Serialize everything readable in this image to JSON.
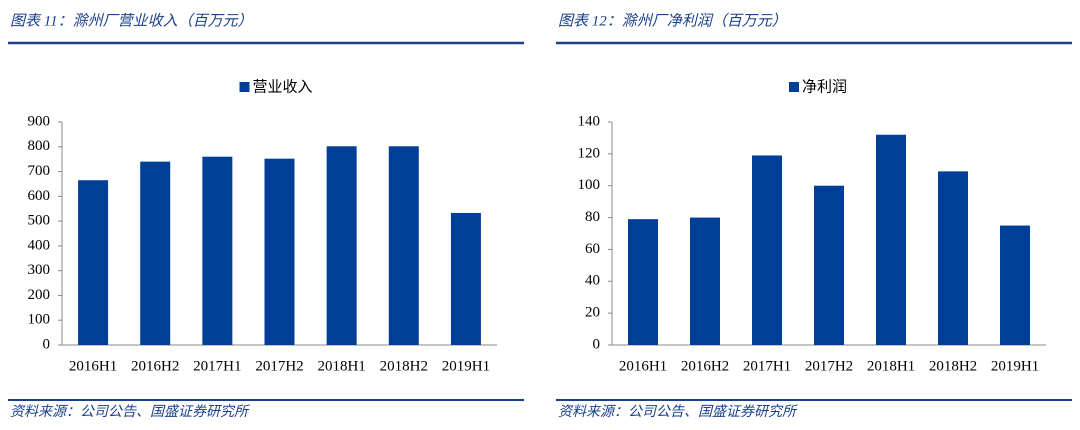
{
  "chart_data": [
    {
      "type": "bar",
      "title": "图表 11：滁州厂营业收入（百万元）",
      "categories": [
        "2016H1",
        "2016H2",
        "2017H1",
        "2017H2",
        "2018H1",
        "2018H2",
        "2019H1"
      ],
      "series": [
        {
          "name": "营业收入",
          "color": "#003f98",
          "values": [
            665,
            740,
            760,
            752,
            802,
            802,
            533
          ]
        }
      ],
      "ylim": [
        0,
        900
      ],
      "yticks": [
        0,
        100,
        200,
        300,
        400,
        500,
        600,
        700,
        800,
        900
      ],
      "legend": "top",
      "source": "资料来源：公司公告、国盛证券研究所"
    },
    {
      "type": "bar",
      "title": "图表 12：滁州厂净利润（百万元）",
      "categories": [
        "2016H1",
        "2016H2",
        "2017H1",
        "2017H2",
        "2018H1",
        "2018H2",
        "2019H1"
      ],
      "series": [
        {
          "name": "净利润",
          "color": "#003f98",
          "values": [
            79,
            80,
            119,
            100,
            132,
            109,
            75
          ]
        }
      ],
      "ylim": [
        0,
        140
      ],
      "yticks": [
        0,
        20,
        40,
        60,
        80,
        100,
        120,
        140
      ],
      "legend": "top",
      "source": "资料来源：公司公告、国盛证券研究所"
    }
  ]
}
